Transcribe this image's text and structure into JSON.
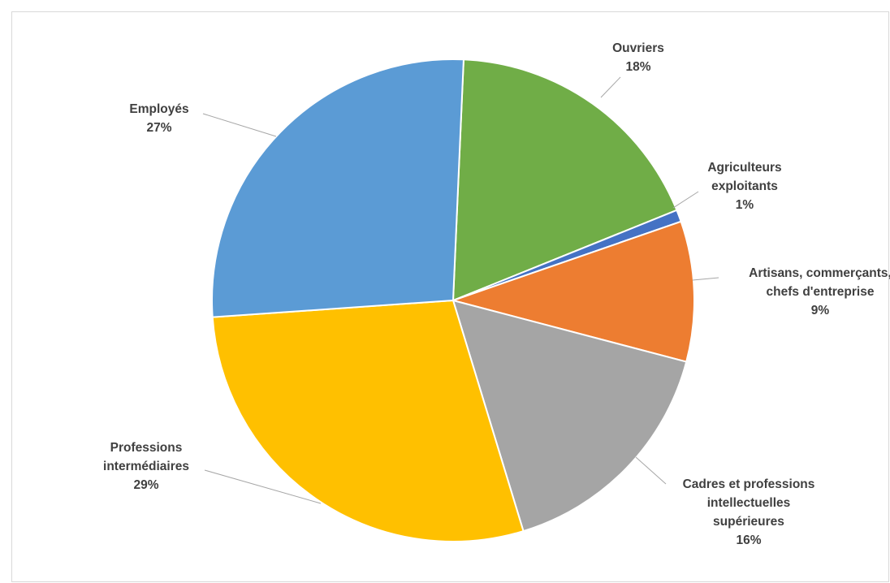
{
  "chart_data": {
    "type": "pie",
    "slices": [
      {
        "name": "Ouvriers",
        "label_lines": [
          "Ouvriers"
        ],
        "pct_label": "18%",
        "value": 18.2,
        "color": "#70ad47"
      },
      {
        "name": "Agriculteurs exploitants",
        "label_lines": [
          "Agriculteurs",
          "exploitants"
        ],
        "pct_label": "1%",
        "value": 0.8,
        "color": "#4472c4"
      },
      {
        "name": "Artisans, commerçants, chefs d'entreprise",
        "label_lines": [
          "Artisans, commerçants,",
          "chefs d'entreprise"
        ],
        "pct_label": "9%",
        "value": 9.4,
        "color": "#ed7d31"
      },
      {
        "name": "Cadres et professions intellectuelles supérieures",
        "label_lines": [
          "Cadres et professions",
          "intellectuelles",
          "supérieures"
        ],
        "pct_label": "16%",
        "value": 16.2,
        "color": "#a5a5a5"
      },
      {
        "name": "Professions intermédiaires",
        "label_lines": [
          "Professions",
          "intermédiaires"
        ],
        "pct_label": "29%",
        "value": 28.6,
        "color": "#ffc000"
      },
      {
        "name": "Employés",
        "label_lines": [
          "Employés"
        ],
        "pct_label": "27%",
        "value": 26.8,
        "color": "#5b9bd5"
      }
    ],
    "start_angle_deg": 2.5,
    "legend": "none"
  }
}
